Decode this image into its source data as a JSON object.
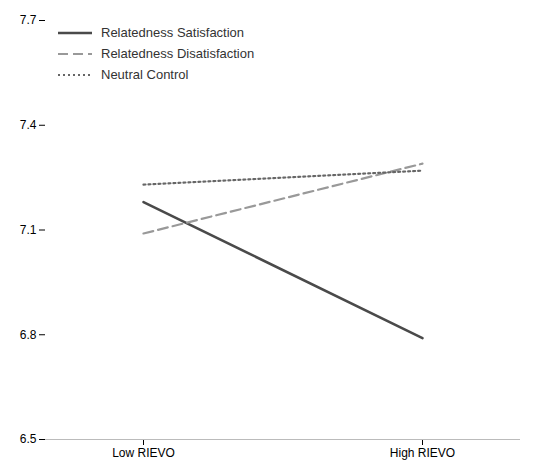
{
  "chart_data": {
    "type": "line",
    "categories": [
      "Low RIEVO",
      "High RIEVO"
    ],
    "series": [
      {
        "name": "Relatedness Satisfaction",
        "color": "#4a4a4a",
        "line_style": "solid",
        "values": [
          7.18,
          6.79
        ]
      },
      {
        "name": "Relatedness Disatisfaction",
        "color": "#999999",
        "line_style": "dashed",
        "values": [
          7.09,
          7.29
        ]
      },
      {
        "name": "Neutral Control",
        "color": "#666666",
        "line_style": "dotted",
        "values": [
          7.23,
          7.27
        ]
      }
    ],
    "ylim": [
      6.5,
      7.7
    ],
    "yticks": [
      6.5,
      6.8,
      7.1,
      7.4,
      7.7
    ],
    "grid": false,
    "legend": "upper left"
  }
}
